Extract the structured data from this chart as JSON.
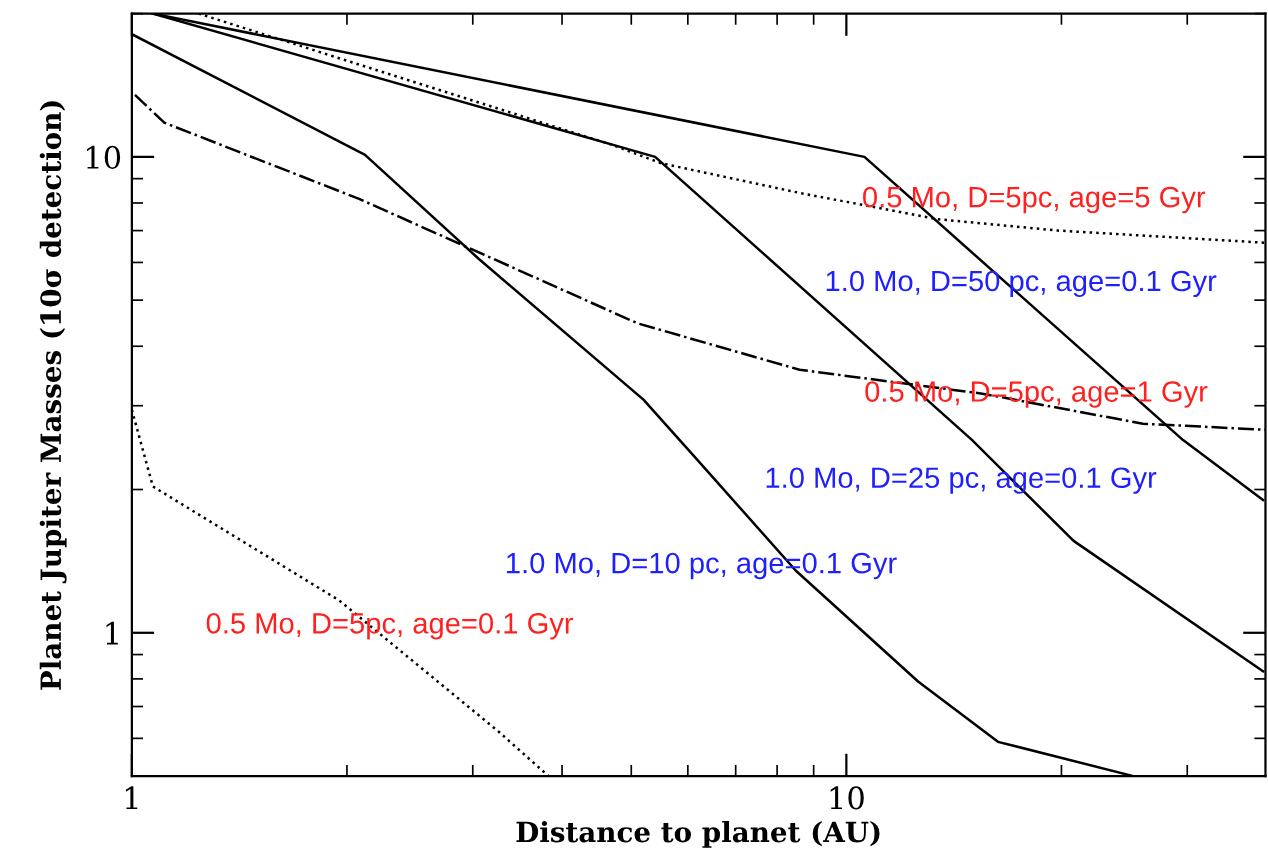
{
  "chart_data": {
    "type": "line",
    "xlabel": "Distance to planet (AU)",
    "ylabel": "Planet Jupiter Masses (10σ detection)",
    "log": "xy",
    "xlim": [
      1,
      38.6
    ],
    "ylim": [
      0.5,
      20
    ],
    "xticks": [
      1,
      10
    ],
    "yticks": [
      1,
      10
    ],
    "grid": false,
    "legend": false,
    "marker": "none",
    "series": [
      {
        "color": "#000000",
        "line_style": "solid",
        "x": [
          1.07,
          10.6,
          29.6,
          38.3
        ],
        "values": [
          20,
          10,
          2.54,
          1.9
        ]
      },
      {
        "color": "#000000",
        "line_style": "solid",
        "x": [
          1.07,
          5.4,
          15.0,
          20.8,
          38.3
        ],
        "values": [
          20,
          10,
          2.54,
          1.56,
          0.83
        ]
      },
      {
        "color": "#000000",
        "line_style": "solid",
        "x": [
          1,
          2.12,
          3.06,
          5.2,
          6.2,
          8.5,
          12.6,
          16.3,
          25.2
        ],
        "values": [
          18.1,
          10.1,
          6.1,
          3.09,
          2.3,
          1.35,
          0.79,
          0.59,
          0.5
        ]
      },
      {
        "color": "#000000",
        "line_style": "dotted",
        "x": [
          1.24,
          4.7,
          5.5,
          8.6,
          13.4,
          19.8,
          38.6
        ],
        "values": [
          20,
          10.6,
          9.7,
          8.4,
          7.4,
          7.0,
          6.6
        ]
      },
      {
        "color": "#000000",
        "line_style": "dashdot",
        "x": [
          1.01,
          1.11,
          2.08,
          5.1,
          8.6,
          15.5,
          26.0,
          38.6
        ],
        "values": [
          13.5,
          11.8,
          8.16,
          4.47,
          3.57,
          3.18,
          2.75,
          2.67
        ]
      },
      {
        "color": "#000000",
        "line_style": "dotted",
        "x": [
          1,
          1.07,
          1.95,
          3.26,
          3.83
        ],
        "values": [
          2.94,
          2.03,
          1.17,
          0.62,
          0.5
        ]
      }
    ],
    "annotations": [
      "0.5 Mo, D=5pc, age=5 Gyr",
      "1.0 Mo, D=50 pc, age=0.1 Gyr",
      "0.5 Mo, D=5pc, age=1 Gyr",
      "1.0 Mo, D=25 pc, age=0.1 Gyr",
      "1.0 Mo, D=10 pc, age=0.1 Gyr",
      "0.5 Mo, D=5pc, age=0.1 Gyr"
    ]
  }
}
